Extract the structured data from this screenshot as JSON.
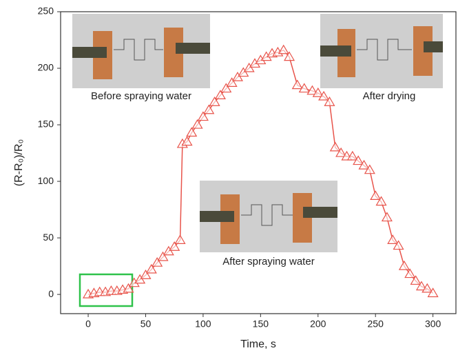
{
  "chart_data": {
    "type": "line",
    "xlabel": "Time, s",
    "ylabel": "(R-R₀)/R₀",
    "x": [
      0,
      5,
      10,
      15,
      20,
      25,
      30,
      35,
      40,
      45,
      50,
      55,
      60,
      65,
      70,
      75,
      80,
      82,
      86,
      90,
      95,
      100,
      105,
      110,
      115,
      120,
      125,
      130,
      135,
      140,
      145,
      150,
      155,
      160,
      165,
      170,
      175,
      182,
      188,
      195,
      200,
      205,
      210,
      215,
      220,
      225,
      230,
      235,
      240,
      245,
      250,
      255,
      260,
      265,
      270,
      275,
      280,
      285,
      290,
      295,
      300
    ],
    "values": [
      0,
      1,
      2,
      2,
      3,
      3,
      4,
      5,
      10,
      13,
      17,
      22,
      28,
      33,
      38,
      42,
      48,
      133,
      135,
      143,
      150,
      157,
      163,
      170,
      176,
      182,
      187,
      192,
      196,
      200,
      204,
      207,
      210,
      213,
      214,
      216,
      210,
      185,
      182,
      180,
      178,
      175,
      170,
      130,
      125,
      122,
      122,
      118,
      114,
      110,
      87,
      82,
      68,
      48,
      43,
      25,
      18,
      12,
      7,
      5,
      1
    ],
    "color": "#e8534a",
    "xlim": [
      -24,
      320
    ],
    "ylim": [
      -17,
      250
    ],
    "xticks": [
      0,
      50,
      100,
      150,
      200,
      250,
      300
    ],
    "yticks": [
      0,
      50,
      100,
      150,
      200,
      250
    ],
    "annotations": [
      "Before spraying water",
      "After drying",
      "After spraying water"
    ]
  }
}
